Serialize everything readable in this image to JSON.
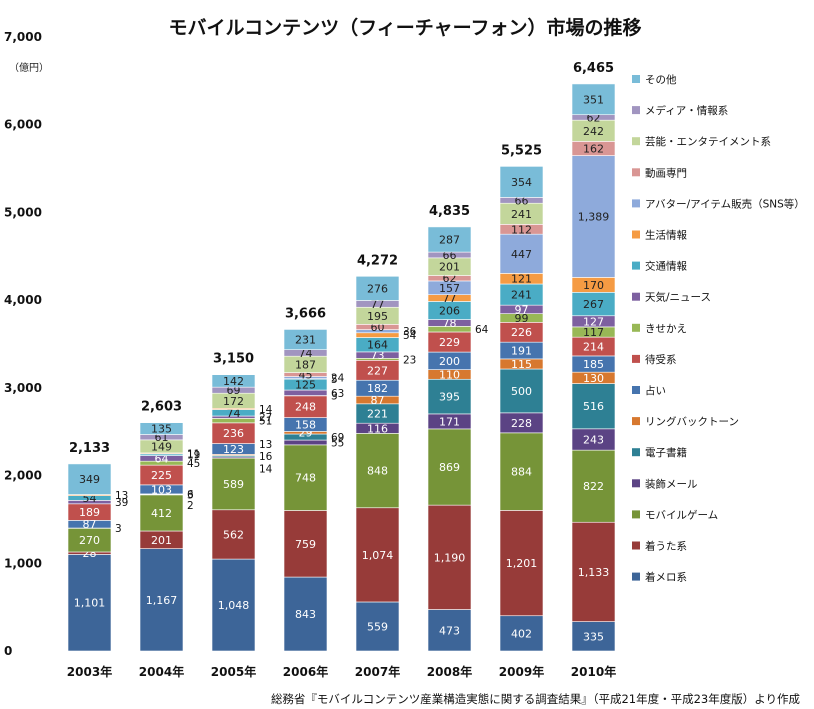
{
  "chart_data": {
    "type": "bar",
    "stacked": true,
    "title": "モバイルコンテンツ（フィーチャーフォン）市場の推移",
    "ylabel": "（億円）",
    "ylim": [
      0,
      7000
    ],
    "yticks": [
      0,
      1000,
      2000,
      3000,
      4000,
      5000,
      6000,
      7000
    ],
    "ytick_labels": [
      "0",
      "1,000",
      "2,000",
      "3,000",
      "4,000",
      "5,000",
      "6,000",
      "7,000"
    ],
    "categories": [
      "2003年",
      "2004年",
      "2005年",
      "2006年",
      "2007年",
      "2008年",
      "2009年",
      "2010年"
    ],
    "totals": [
      2133,
      2603,
      3150,
      3666,
      4272,
      4835,
      5525,
      6465
    ],
    "total_labels": [
      "2,133",
      "2,603",
      "3,150",
      "3,666",
      "4,272",
      "4,835",
      "5,525",
      "6,465"
    ],
    "series": [
      {
        "name": "着メロ系",
        "color": "#3d6598",
        "values": [
          1101,
          1167,
          1048,
          843,
          559,
          473,
          402,
          335
        ],
        "labels": [
          "1,101",
          "1,167",
          "1,048",
          "843",
          "559",
          "473",
          "402",
          "335"
        ]
      },
      {
        "name": "着うた系",
        "color": "#973b39",
        "values": [
          28,
          201,
          562,
          759,
          1074,
          1190,
          1201,
          1133
        ],
        "labels": [
          "28",
          "201",
          "562",
          "759",
          "1,074",
          "1,190",
          "1,201",
          "1,133"
        ]
      },
      {
        "name": "モバイルゲーム",
        "color": "#769438",
        "values": [
          270,
          412,
          589,
          748,
          848,
          869,
          884,
          822
        ],
        "labels": [
          "270",
          "412",
          "589",
          "748",
          "848",
          "869",
          "884",
          "822"
        ]
      },
      {
        "name": "装飾メール",
        "color": "#5b4384",
        "values": [
          3,
          2,
          14,
          55,
          116,
          171,
          228,
          243
        ],
        "labels": [
          "3",
          "2",
          "14",
          "55",
          "116",
          "171",
          "228",
          "243"
        ]
      },
      {
        "name": "電子書籍",
        "color": "#2e8094",
        "values": [
          0,
          3,
          16,
          69,
          221,
          395,
          500,
          516
        ],
        "labels": [
          "",
          "3",
          "16",
          "69",
          "221",
          "395",
          "500",
          "516"
        ]
      },
      {
        "name": "リングバックトーン",
        "color": "#d7782f",
        "values": [
          0,
          6,
          13,
          29,
          87,
          110,
          115,
          130
        ],
        "labels": [
          "",
          "6",
          "13",
          "29",
          "87",
          "110",
          "115",
          "130"
        ]
      },
      {
        "name": "占い",
        "color": "#4674ae",
        "values": [
          87,
          103,
          123,
          158,
          182,
          200,
          191,
          185
        ],
        "labels": [
          "87",
          "103",
          "123",
          "158",
          "182",
          "200",
          "191",
          "185"
        ]
      },
      {
        "name": "待受系",
        "color": "#c0504d",
        "values": [
          189,
          225,
          236,
          248,
          227,
          229,
          226,
          214
        ],
        "labels": [
          "189",
          "225",
          "236",
          "248",
          "227",
          "229",
          "226",
          "214"
        ]
      },
      {
        "name": "きせかえ",
        "color": "#98b856",
        "values": [
          0,
          45,
          51,
          3,
          23,
          64,
          99,
          117
        ],
        "labels": [
          "",
          "45",
          "51",
          "3",
          "23",
          "64",
          "99",
          "117"
        ]
      },
      {
        "name": "天気/ニュース",
        "color": "#7d60a0",
        "values": [
          39,
          64,
          27,
          63,
          73,
          78,
          97,
          127
        ],
        "labels": [
          "39",
          "64",
          "27",
          "63",
          "73",
          "78",
          "97",
          "127"
        ]
      },
      {
        "name": "交通情報",
        "color": "#4aacc5",
        "values": [
          54,
          19,
          74,
          125,
          164,
          206,
          241,
          267
        ],
        "labels": [
          "54",
          "19",
          "74",
          "125",
          "164",
          "206",
          "241",
          "267"
        ]
      },
      {
        "name": "生活情報",
        "color": "#f59b43",
        "values": [
          13,
          11,
          14,
          5,
          54,
          77,
          121,
          170
        ],
        "labels": [
          "13",
          "11",
          "14",
          "5",
          "54",
          "77",
          "121",
          "170"
        ]
      },
      {
        "name": "アバター/アイテム販売（SNS等）",
        "color": "#8eaadb",
        "values": [
          0,
          0,
          0,
          24,
          36,
          157,
          447,
          1389
        ],
        "labels": [
          "",
          "",
          "",
          "24",
          "36",
          "157",
          "447",
          "1,389"
        ]
      },
      {
        "name": "動画専門",
        "color": "#d99694",
        "values": [
          0,
          0,
          0,
          45,
          60,
          62,
          112,
          162
        ],
        "labels": [
          "",
          "",
          "",
          "45",
          "60",
          "62",
          "112",
          "162"
        ]
      },
      {
        "name": "芸能・エンタテイメント系",
        "color": "#c3d69b",
        "values": [
          0,
          149,
          172,
          187,
          195,
          201,
          241,
          242
        ],
        "labels": [
          "",
          "149",
          "172",
          "187",
          "195",
          "201",
          "241",
          "242"
        ]
      },
      {
        "name": "メディア・情報系",
        "color": "#a195c0",
        "values": [
          0,
          61,
          69,
          74,
          77,
          66,
          66,
          62
        ],
        "labels": [
          "",
          "61",
          "69",
          "74",
          "77",
          "66",
          "66",
          "62"
        ]
      },
      {
        "name": "その他",
        "color": "#79bcd8",
        "values": [
          349,
          135,
          142,
          231,
          276,
          287,
          354,
          351
        ],
        "labels": [
          "349",
          "135",
          "142",
          "231",
          "276",
          "287",
          "354",
          "351"
        ]
      }
    ],
    "legend_position": "right",
    "legend_order": [
      "その他",
      "メディア・情報系",
      "芸能・エンタテイメント系",
      "動画専門",
      "アバター/アイテム販売（SNS等）",
      "生活情報",
      "交通情報",
      "天気/ニュース",
      "きせかえ",
      "待受系",
      "占い",
      "リングバックトーン",
      "電子書籍",
      "装飾メール",
      "モバイルゲーム",
      "着うた系",
      "着メロ系"
    ],
    "source": "総務省『モバイルコンテンツ産業構造実態に関する調査結果』（平成21年度・平成23年度版）より作成"
  }
}
